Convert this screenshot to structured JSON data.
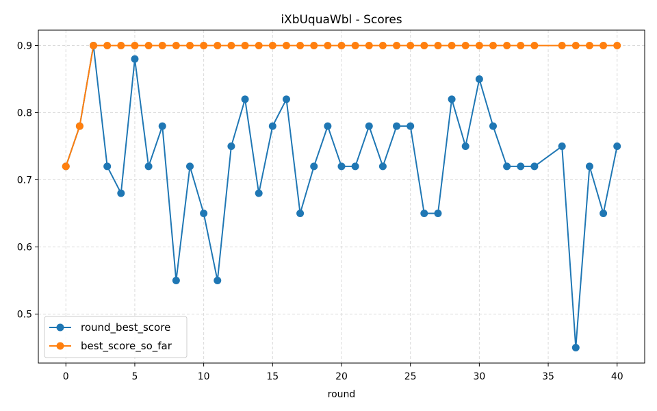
{
  "chart_data": {
    "type": "line",
    "title": "iXbUquaWbl - Scores",
    "xlabel": "round",
    "ylabel": "",
    "xlim": [
      -2,
      42
    ],
    "ylim": [
      0.427,
      0.923
    ],
    "xticks": [
      0,
      5,
      10,
      15,
      20,
      25,
      30,
      35,
      40
    ],
    "yticks": [
      0.5,
      0.6,
      0.7,
      0.8,
      0.9
    ],
    "grid": true,
    "legend_position": "lower-left",
    "series": [
      {
        "name": "round_best_score",
        "color": "#1f77b4",
        "x": [
          0,
          1,
          2,
          3,
          4,
          5,
          6,
          7,
          8,
          9,
          10,
          11,
          12,
          13,
          14,
          15,
          16,
          17,
          18,
          19,
          20,
          21,
          22,
          23,
          24,
          25,
          26,
          27,
          28,
          29,
          30,
          31,
          32,
          33,
          34,
          36,
          37,
          38,
          39,
          40
        ],
        "y": [
          0.72,
          0.78,
          0.9,
          0.72,
          0.68,
          0.88,
          0.72,
          0.78,
          0.55,
          0.72,
          0.65,
          0.55,
          0.75,
          0.82,
          0.68,
          0.78,
          0.82,
          0.65,
          0.72,
          0.78,
          0.72,
          0.72,
          0.78,
          0.72,
          0.78,
          0.78,
          0.65,
          0.65,
          0.82,
          0.75,
          0.85,
          0.78,
          0.72,
          0.72,
          0.72,
          0.75,
          0.45,
          0.72,
          0.65,
          0.75
        ]
      },
      {
        "name": "best_score_so_far",
        "color": "#ff7f0e",
        "x": [
          0,
          1,
          2,
          3,
          4,
          5,
          6,
          7,
          8,
          9,
          10,
          11,
          12,
          13,
          14,
          15,
          16,
          17,
          18,
          19,
          20,
          21,
          22,
          23,
          24,
          25,
          26,
          27,
          28,
          29,
          30,
          31,
          32,
          33,
          34,
          36,
          37,
          38,
          39,
          40
        ],
        "y": [
          0.72,
          0.78,
          0.9,
          0.9,
          0.9,
          0.9,
          0.9,
          0.9,
          0.9,
          0.9,
          0.9,
          0.9,
          0.9,
          0.9,
          0.9,
          0.9,
          0.9,
          0.9,
          0.9,
          0.9,
          0.9,
          0.9,
          0.9,
          0.9,
          0.9,
          0.9,
          0.9,
          0.9,
          0.9,
          0.9,
          0.9,
          0.9,
          0.9,
          0.9,
          0.9,
          0.9,
          0.9,
          0.9,
          0.9,
          0.9
        ]
      }
    ]
  }
}
